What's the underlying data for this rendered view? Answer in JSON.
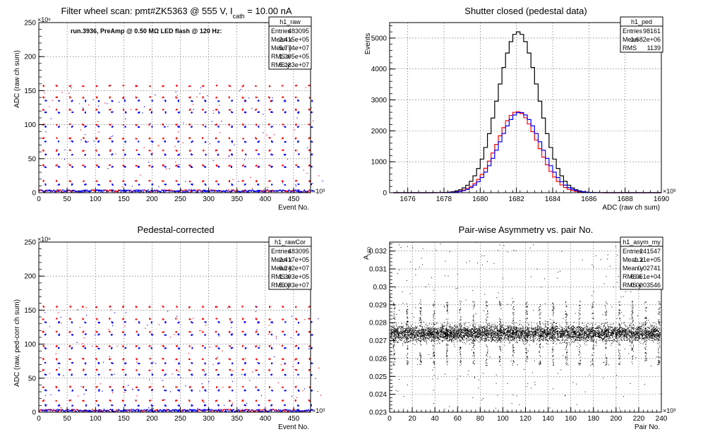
{
  "panels": [
    {
      "id": "raw",
      "title_main": "Filter wheel scan: pmt#ZK5363 @   555 V, I",
      "title_sub": "cath",
      "title_tail": " = 10.00 nA",
      "annotation": "run.3936, PreAmp @ 0.50 MΩ LED flash @  120 Hz:",
      "stats": {
        "name": "h1_raw",
        "rows": [
          [
            "Entries",
            "483095"
          ],
          [
            "Mean x",
            "2.415e+05"
          ],
          [
            "Mean y",
            "5.774e+07"
          ],
          [
            "RMS x",
            "1.395e+05"
          ],
          [
            "RMS y",
            "5.183e+07"
          ]
        ]
      }
    },
    {
      "id": "ped",
      "title_main": "Shutter closed (pedestal data)",
      "stats": {
        "name": "h1_ped",
        "rows": [
          [
            "Entries",
            "98161"
          ],
          [
            "Mean",
            "1.682e+06"
          ],
          [
            "RMS",
            "1139"
          ]
        ]
      }
    },
    {
      "id": "cor",
      "title_main": "Pedestal-corrected",
      "stats": {
        "name": "h1_rawCor",
        "rows": [
          [
            "Entries",
            "483095"
          ],
          [
            "Mean x",
            "2.417e+05"
          ],
          [
            "Mean y",
            "6.242e+07"
          ],
          [
            "RMS x",
            "1.393e+05"
          ],
          [
            "RMS y",
            "5.093e+07"
          ]
        ]
      }
    },
    {
      "id": "asym",
      "title_main": "Pair-wise Asymmetry vs. pair No.",
      "stats": {
        "name": "h1_asym_my",
        "rows": [
          [
            "Entries",
            "241547"
          ],
          [
            "Mean x",
            "1.21e+05"
          ],
          [
            "Mean y",
            "0.02741"
          ],
          [
            "RMS x",
            "6.951e+04"
          ],
          [
            "RMS y",
            "0.0003546"
          ]
        ]
      }
    }
  ],
  "colors": {
    "red": "#ff0000",
    "blue": "#0000ff",
    "black": "#000000",
    "grid": "#555555"
  },
  "chart_data": [
    {
      "type": "scatter",
      "title": "Filter wheel scan: pmt#ZK5363 @   555 V, I cath = 10.00 nA",
      "xlabel": "Event No.",
      "xexp": "×10³",
      "ylabel": "ADC (raw ch sum)",
      "yexp": "×10⁶",
      "xlim": [
        0,
        480
      ],
      "ylim": [
        0,
        250
      ],
      "xticks": [
        0,
        50,
        100,
        150,
        200,
        250,
        300,
        350,
        400,
        450
      ],
      "yticks": [
        0,
        50,
        100,
        150,
        200,
        250
      ],
      "grid": true,
      "levels_red": [
        17,
        40,
        62,
        80,
        100,
        122,
        140,
        157
      ],
      "levels_blue": [
        3,
        12,
        38,
        56,
        75,
        97,
        118,
        135
      ],
      "period": 23.5
    },
    {
      "type": "histogram",
      "title": "Shutter closed (pedestal data)",
      "xlabel": "ADC (raw ch sum)",
      "xexp": "×10³",
      "ylabel": "Events",
      "xlim": [
        1675,
        1690
      ],
      "ylim": [
        0,
        5500
      ],
      "xticks": [
        1676,
        1678,
        1680,
        1682,
        1684,
        1686,
        1688,
        1690
      ],
      "yticks": [
        0,
        1000,
        2000,
        3000,
        4000,
        5000
      ],
      "grid": true,
      "series": [
        {
          "color": "black",
          "peak": 5200,
          "mean": 1682.1,
          "sigma": 1.13
        },
        {
          "color": "red",
          "peak": 2620,
          "mean": 1682.05,
          "sigma": 1.13
        },
        {
          "color": "blue",
          "peak": 2600,
          "mean": 1682.2,
          "sigma": 1.15
        }
      ]
    },
    {
      "type": "scatter",
      "title": "Pedestal-corrected",
      "xlabel": "Event No.",
      "xexp": "×10³",
      "ylabel": "ADC (raw, ped-corr ch sum)",
      "yexp": "×10⁶",
      "xlim": [
        0,
        480
      ],
      "ylim": [
        0,
        250
      ],
      "xticks": [
        0,
        50,
        100,
        150,
        200,
        250,
        300,
        350,
        400,
        450
      ],
      "yticks": [
        0,
        50,
        100,
        150,
        200,
        250
      ],
      "grid": true,
      "levels_red": [
        17,
        37,
        62,
        78,
        97,
        118,
        137,
        155
      ],
      "levels_blue": [
        3,
        10,
        32,
        55,
        72,
        94,
        114,
        132
      ],
      "period": 23.5
    },
    {
      "type": "scatter",
      "title": "Pair-wise Asymmetry vs. pair No.",
      "xlabel": "Pair No.",
      "xexp": "×10³",
      "ylabel": "A_LED",
      "xlim": [
        0,
        240
      ],
      "ylim": [
        0.023,
        0.0325
      ],
      "xticks": [
        0,
        20,
        40,
        60,
        80,
        100,
        120,
        140,
        160,
        180,
        200,
        220,
        240
      ],
      "yticks": [
        0.023,
        0.024,
        0.025,
        0.026,
        0.027,
        0.028,
        0.029,
        0.03,
        0.031,
        0.032
      ],
      "grid": true,
      "band_center": 0.0274,
      "band_halfwidth": 0.0004,
      "spike_period": 11.7
    }
  ]
}
